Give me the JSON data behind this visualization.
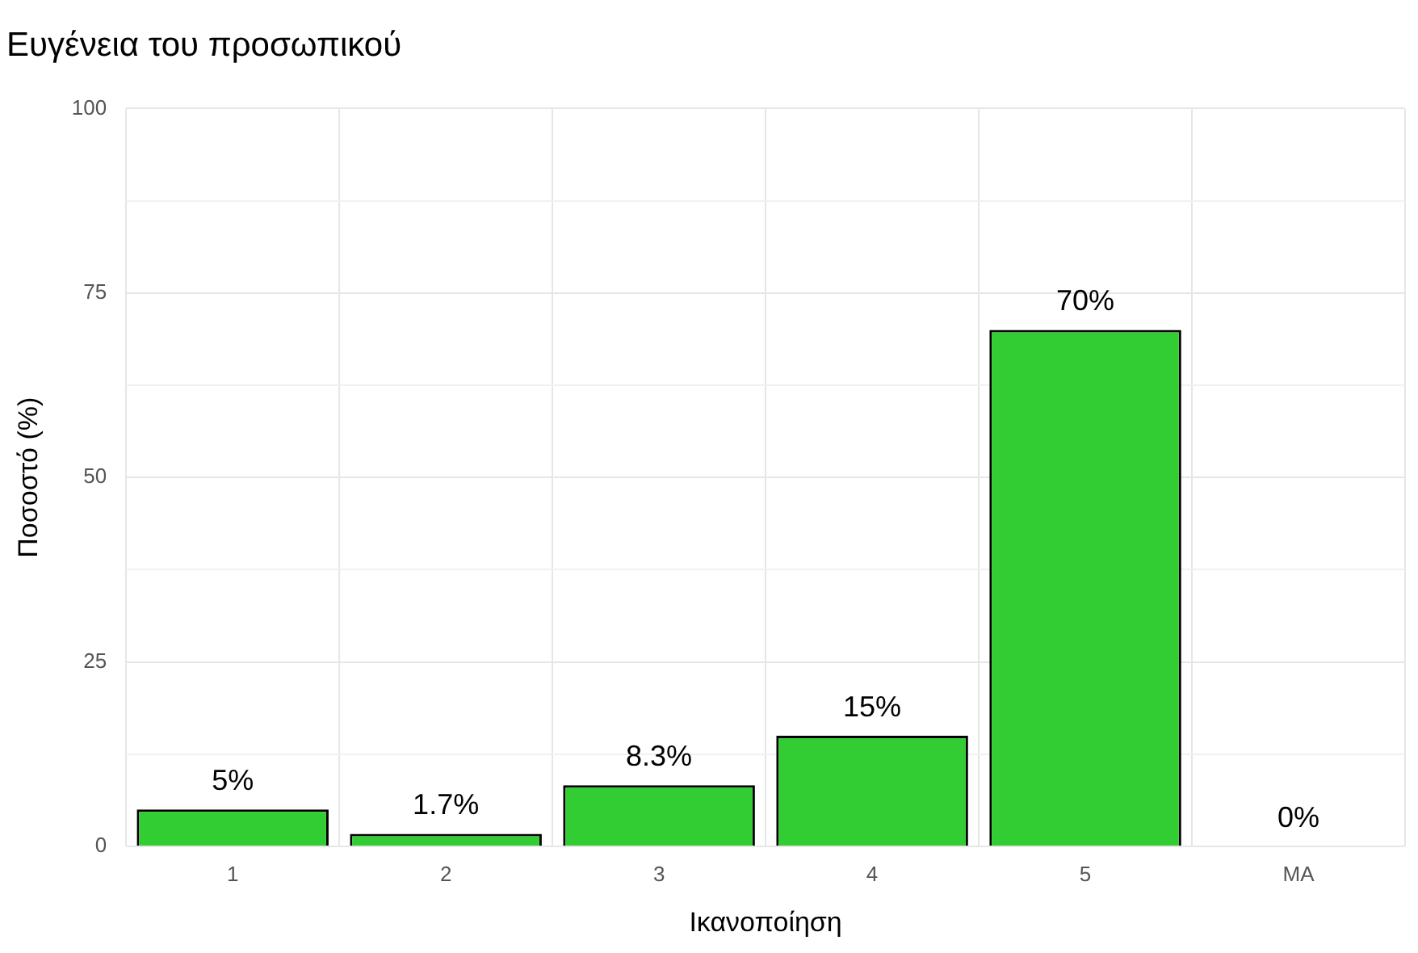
{
  "chart_data": {
    "type": "bar",
    "title": "Ευγένεια του προσωπικού",
    "xlabel": "Ικανοποίηση",
    "ylabel": "Ποσοστό (%)",
    "categories": [
      "1",
      "2",
      "3",
      "4",
      "5",
      "ΜΑ"
    ],
    "values": [
      5,
      1.7,
      8.3,
      15,
      70,
      0
    ],
    "value_labels": [
      "5%",
      "1.7%",
      "8.3%",
      "15%",
      "70%",
      "0%"
    ],
    "color": "#32cd32",
    "ylim": [
      0,
      100
    ],
    "yticks": [
      0,
      {
        "value": 12.5,
        "label": null
      },
      25,
      {
        "value": 37.5,
        "label": null
      },
      50,
      {
        "value": 62.5,
        "label": null
      },
      75,
      {
        "value": 87.5,
        "label": null
      },
      100
    ],
    "grid": true
  }
}
